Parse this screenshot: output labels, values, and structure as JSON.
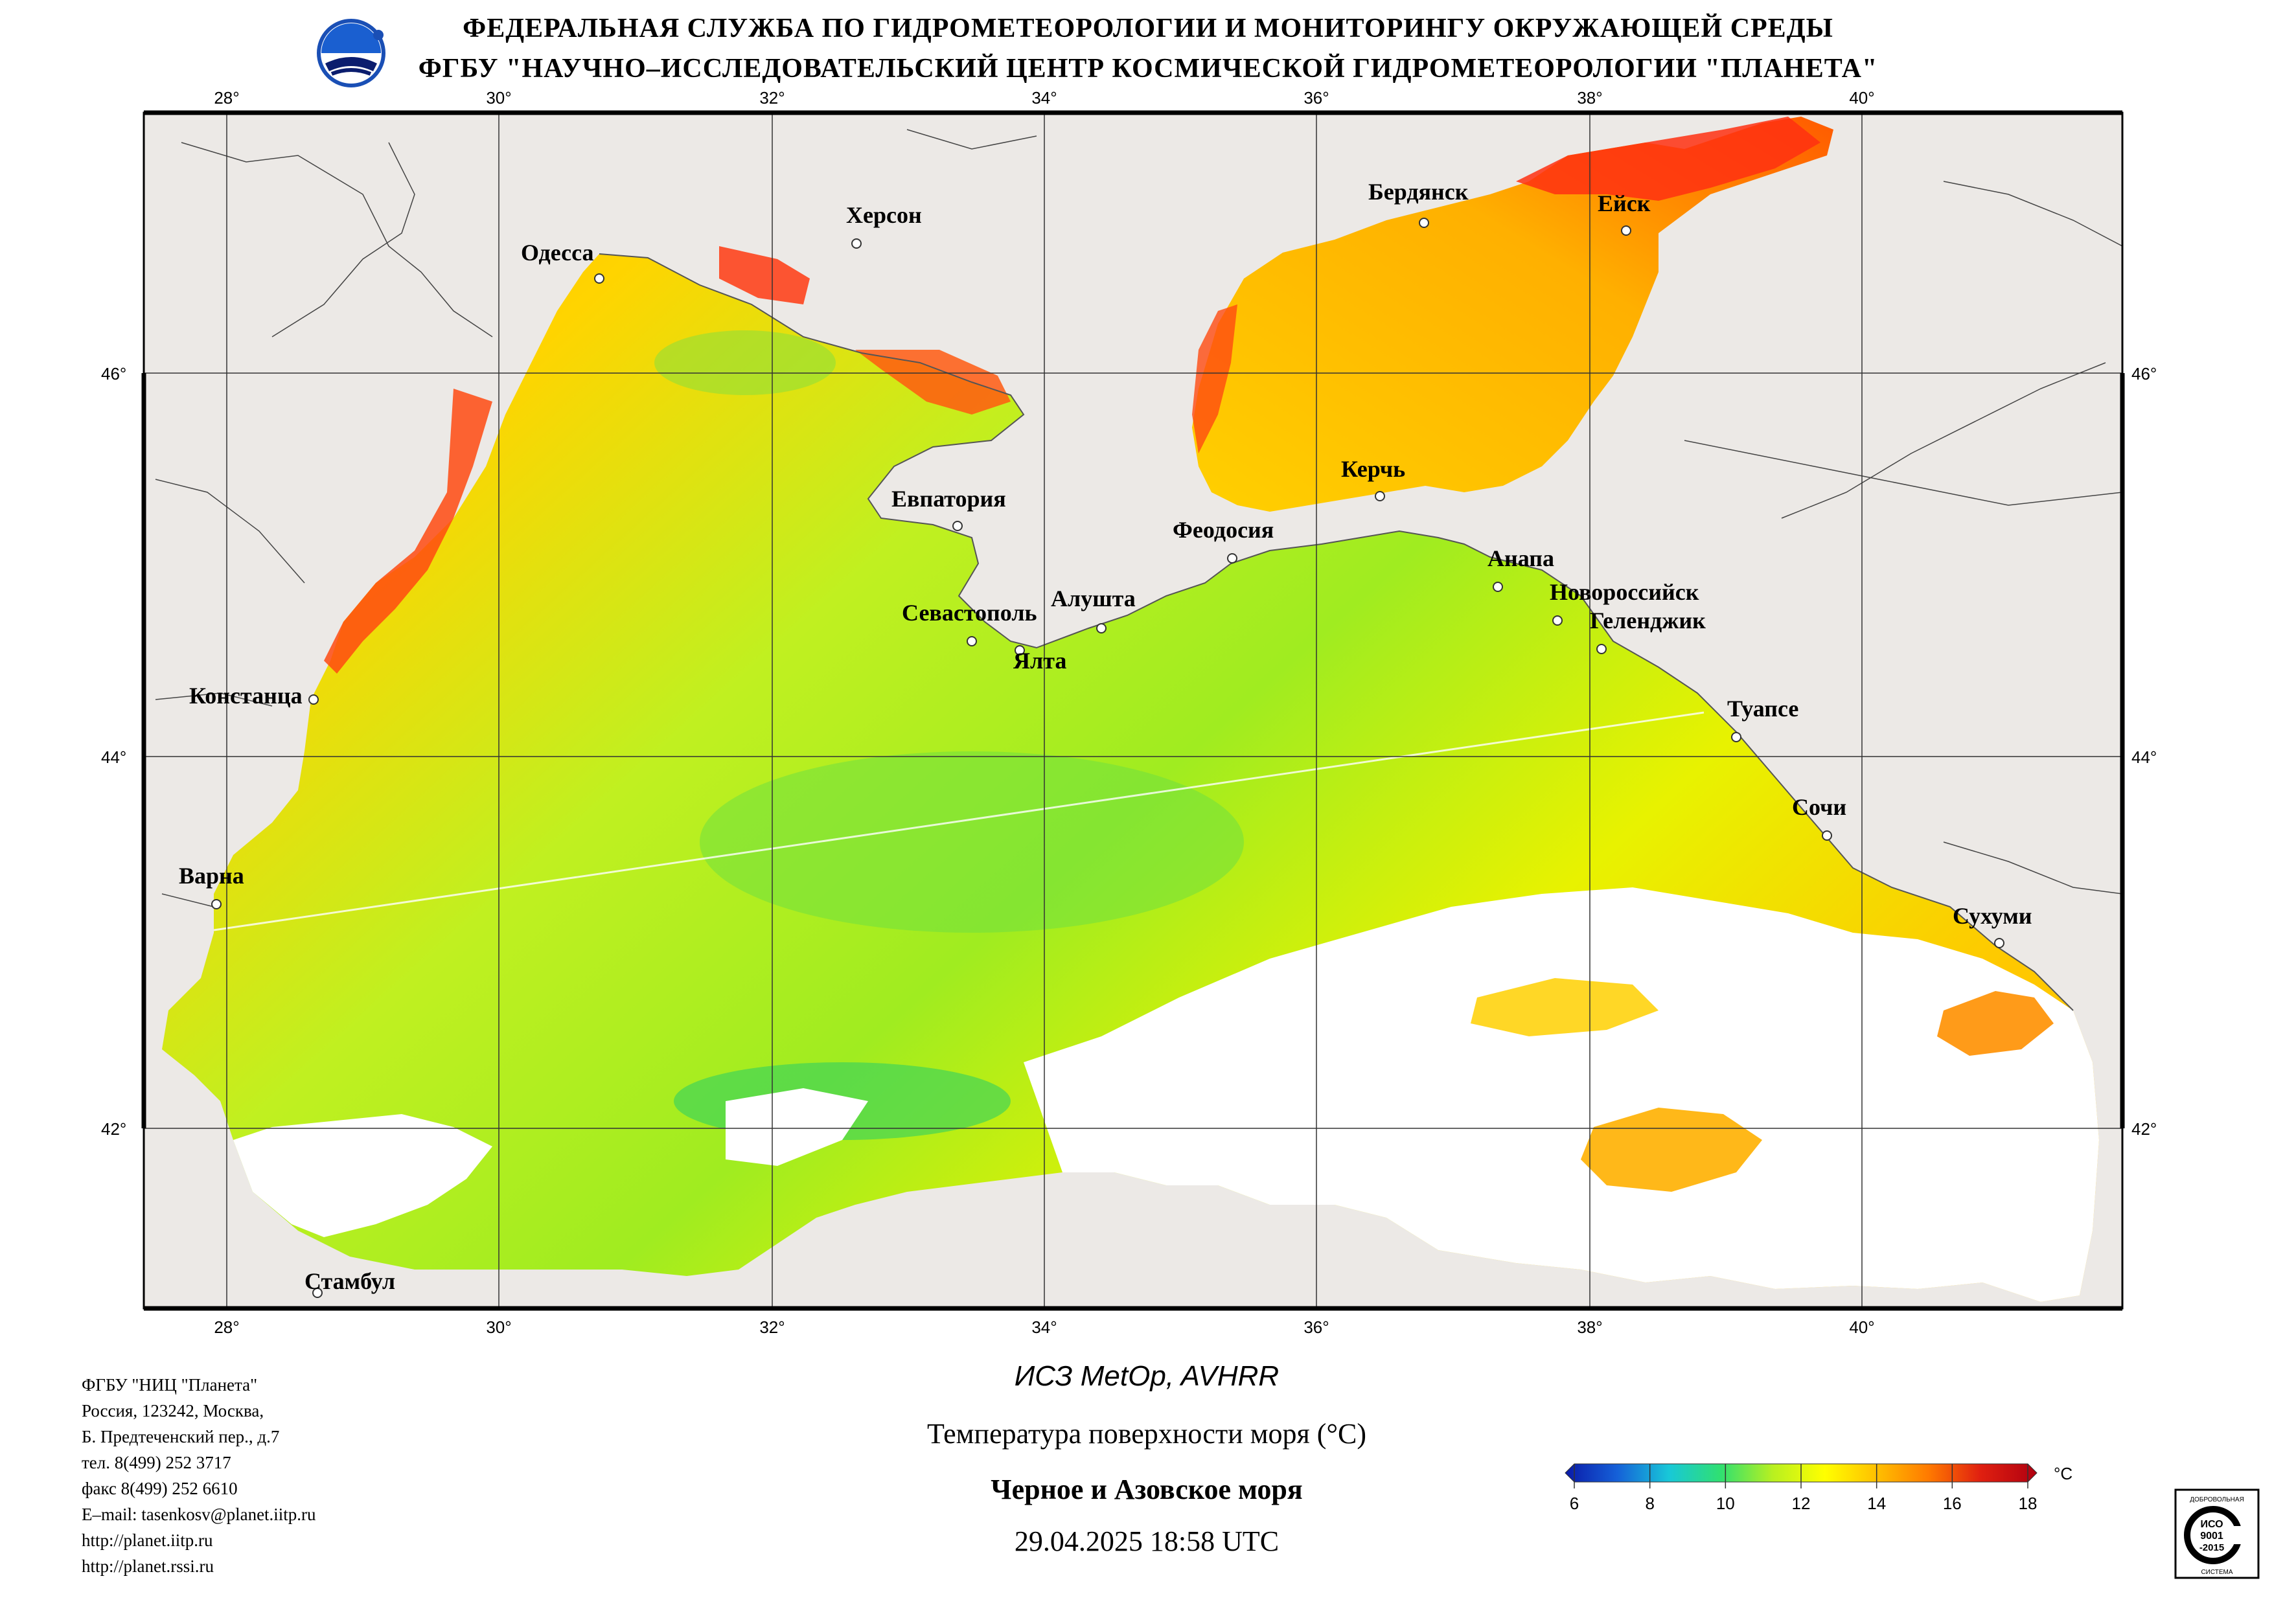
{
  "header": {
    "line1": "ФЕДЕРАЛЬНАЯ СЛУЖБА ПО ГИДРОМЕТЕОРОЛОГИИ И МОНИТОРИНГУ ОКРУЖАЮЩЕЙ СРЕДЫ",
    "line2": "ФГБУ \"НАУЧНО–ИССЛЕДОВАТЕЛЬСКИЙ ЦЕНТР КОСМИЧЕСКОЙ ГИДРОМЕТЕОРОЛОГИИ \"ПЛАНЕТА\""
  },
  "map": {
    "lon_ticks": [
      "28°",
      "30°",
      "32°",
      "34°",
      "36°",
      "38°",
      "40°"
    ],
    "lat_ticks": [
      "46°",
      "44°",
      "42°"
    ],
    "colors": {
      "land": "#ece9e6",
      "clouds": "#ffffff",
      "grid": "#333333",
      "border": "#000000"
    },
    "cities": [
      {
        "name": "Одесса"
      },
      {
        "name": "Херсон"
      },
      {
        "name": "Бердянск"
      },
      {
        "name": "Ейск"
      },
      {
        "name": "Евпатория"
      },
      {
        "name": "Керчь"
      },
      {
        "name": "Феодосия"
      },
      {
        "name": "Анапа"
      },
      {
        "name": "Новороссийск"
      },
      {
        "name": "Геленджик"
      },
      {
        "name": "Севастополь"
      },
      {
        "name": "Алушта"
      },
      {
        "name": "Ялта"
      },
      {
        "name": "Констанца"
      },
      {
        "name": "Туапсе"
      },
      {
        "name": "Сочи"
      },
      {
        "name": "Варна"
      },
      {
        "name": "Сухуми"
      },
      {
        "name": "Стамбул"
      }
    ]
  },
  "contacts": [
    "ФГБУ \"НИЦ \"Планета\"",
    "Россия, 123242, Москва,",
    "Б. Предтеченский пер., д.7",
    "тел. 8(499) 252 3717",
    "факс 8(499) 252 6610",
    "E–mail: tasenkosv@planet.iitp.ru",
    "http://planet.iitp.ru",
    "http://planet.rssi.ru"
  ],
  "product": {
    "satellite": "ИСЗ MetOp, AVHRR",
    "parameter": "Температура поверхности моря (°C)",
    "region": "Черное и Азовское моря",
    "datetime": "29.04.2025 18:58 UTC"
  },
  "colorbar": {
    "unit": "°C",
    "min": 6,
    "max": 18,
    "ticks": [
      "6",
      "8",
      "10",
      "12",
      "14",
      "16",
      "18"
    ],
    "gradient": [
      "#0a1aa8",
      "#1560d8",
      "#18c8d8",
      "#30e070",
      "#b8f020",
      "#ffff00",
      "#ffc000",
      "#ff7a00",
      "#e02010",
      "#b00010"
    ]
  },
  "iso_badge": {
    "top_text": "ДОБРОВОЛЬНАЯ",
    "line1": "ИСО",
    "line2": "9001",
    "line3": "-2015",
    "bottom_text": "СИСТЕМА"
  }
}
